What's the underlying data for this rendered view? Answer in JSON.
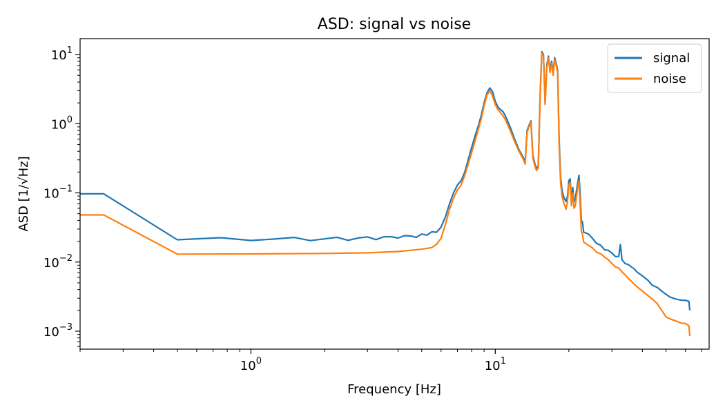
{
  "chart_data": {
    "type": "line",
    "title": "ASD: signal vs noise",
    "xlabel": "Frequency [Hz]",
    "ylabel": "ASD [1/√Hz]",
    "xscale": "log",
    "yscale": "log",
    "xlim": [
      0.2,
      75
    ],
    "ylim": [
      0.00055,
      17
    ],
    "x_tick_labels": [
      {
        "value": 1,
        "base": "10",
        "exp": "0"
      },
      {
        "value": 10,
        "base": "10",
        "exp": "1"
      }
    ],
    "y_tick_labels": [
      {
        "value": 0.001,
        "base": "10",
        "exp": "−3"
      },
      {
        "value": 0.01,
        "base": "10",
        "exp": "−2"
      },
      {
        "value": 0.1,
        "base": "10",
        "exp": "−1"
      },
      {
        "value": 1,
        "base": "10",
        "exp": "0"
      },
      {
        "value": 10,
        "base": "10",
        "exp": "1"
      }
    ],
    "legend": {
      "location": "top-right",
      "entries": [
        "signal",
        "noise"
      ]
    },
    "colors": {
      "signal": "#1f77b4",
      "noise": "#ff7f0e"
    },
    "series": [
      {
        "name": "signal",
        "x": [
          0.2,
          0.25,
          0.5,
          0.75,
          1.0,
          1.25,
          1.5,
          1.75,
          2.0,
          2.25,
          2.5,
          2.75,
          3.0,
          3.25,
          3.5,
          3.75,
          4.0,
          4.25,
          4.5,
          4.75,
          5.0,
          5.25,
          5.5,
          5.75,
          6.0,
          6.25,
          6.5,
          6.75,
          7.0,
          7.25,
          7.5,
          7.75,
          8.0,
          8.25,
          8.5,
          8.75,
          9.0,
          9.25,
          9.5,
          9.75,
          10.0,
          10.25,
          10.5,
          10.75,
          11.0,
          11.5,
          12.0,
          12.5,
          13.0,
          13.25,
          13.5,
          13.75,
          14.0,
          14.25,
          14.5,
          14.75,
          15.0,
          15.25,
          15.5,
          15.75,
          16.0,
          16.25,
          16.5,
          16.75,
          17.0,
          17.25,
          17.5,
          17.75,
          18.0,
          18.25,
          18.5,
          18.75,
          19.0,
          19.25,
          19.5,
          19.75,
          20.0,
          20.25,
          20.5,
          20.75,
          21.0,
          21.25,
          21.5,
          21.75,
          22.0,
          22.25,
          22.5,
          22.75,
          23.0,
          24.0,
          25.0,
          26.0,
          27.0,
          28.0,
          29.0,
          30.0,
          31.0,
          32.0,
          32.5,
          33.0,
          34.0,
          35.0,
          36.0,
          37.0,
          38.0,
          40.0,
          42.0,
          44.0,
          46.0,
          48.0,
          50.0,
          52.0,
          55.0,
          58.0,
          60.0,
          62.0,
          62.5
        ],
        "y": [
          0.097,
          0.097,
          0.021,
          0.0225,
          0.0205,
          0.0215,
          0.0227,
          0.0204,
          0.0216,
          0.0228,
          0.0206,
          0.0223,
          0.0231,
          0.0211,
          0.0232,
          0.0232,
          0.0222,
          0.0241,
          0.0238,
          0.0228,
          0.0254,
          0.0245,
          0.0274,
          0.0269,
          0.032,
          0.045,
          0.07,
          0.1,
          0.13,
          0.15,
          0.2,
          0.3,
          0.45,
          0.65,
          0.9,
          1.3,
          2.0,
          2.8,
          3.3,
          2.9,
          2.1,
          1.75,
          1.6,
          1.5,
          1.3,
          0.9,
          0.6,
          0.42,
          0.33,
          0.28,
          0.8,
          0.95,
          1.1,
          0.35,
          0.27,
          0.22,
          0.25,
          2.5,
          11.0,
          10.0,
          2.0,
          7.0,
          9.5,
          6.0,
          8.0,
          5.5,
          9.0,
          7.5,
          6.0,
          0.6,
          0.17,
          0.11,
          0.09,
          0.08,
          0.075,
          0.09,
          0.15,
          0.16,
          0.08,
          0.12,
          0.075,
          0.08,
          0.11,
          0.14,
          0.18,
          0.1,
          0.04,
          0.038,
          0.027,
          0.0255,
          0.022,
          0.0185,
          0.0175,
          0.015,
          0.0148,
          0.0135,
          0.012,
          0.012,
          0.018,
          0.0108,
          0.0095,
          0.0092,
          0.0085,
          0.008,
          0.0072,
          0.0063,
          0.0055,
          0.0046,
          0.0043,
          0.0038,
          0.0034,
          0.0031,
          0.0029,
          0.0028,
          0.0028,
          0.0027,
          0.002
        ]
      },
      {
        "name": "noise",
        "x": [
          0.2,
          0.25,
          0.5,
          1.0,
          2.0,
          3.0,
          4.0,
          5.0,
          5.5,
          5.75,
          6.0,
          6.25,
          6.5,
          6.75,
          7.0,
          7.25,
          7.5,
          7.75,
          8.0,
          8.25,
          8.5,
          8.75,
          9.0,
          9.25,
          9.5,
          9.75,
          10.0,
          10.25,
          10.5,
          10.75,
          11.0,
          11.5,
          12.0,
          12.5,
          13.0,
          13.25,
          13.5,
          13.75,
          14.0,
          14.25,
          14.5,
          14.75,
          15.0,
          15.25,
          15.5,
          15.75,
          16.0,
          16.25,
          16.5,
          16.75,
          17.0,
          17.25,
          17.5,
          17.75,
          18.0,
          18.25,
          18.5,
          18.75,
          19.0,
          19.25,
          19.5,
          19.75,
          20.0,
          20.25,
          20.5,
          20.75,
          21.0,
          21.25,
          21.5,
          21.75,
          22.0,
          22.25,
          22.5,
          22.75,
          23.0,
          24.0,
          25.0,
          26.0,
          27.0,
          28.0,
          29.0,
          30.0,
          31.0,
          32.0,
          33.0,
          34.0,
          35.0,
          36.0,
          37.0,
          38.0,
          40.0,
          42.0,
          44.0,
          46.0,
          48.0,
          50.0,
          52.0,
          55.0,
          58.0,
          60.0,
          62.0,
          62.5
        ],
        "y": [
          0.048,
          0.048,
          0.013,
          0.0131,
          0.0133,
          0.0136,
          0.0142,
          0.0153,
          0.0162,
          0.018,
          0.022,
          0.035,
          0.058,
          0.085,
          0.11,
          0.13,
          0.18,
          0.26,
          0.38,
          0.55,
          0.8,
          1.15,
          1.8,
          2.6,
          3.0,
          2.5,
          1.9,
          1.6,
          1.45,
          1.3,
          1.15,
          0.8,
          0.55,
          0.4,
          0.31,
          0.26,
          0.75,
          0.9,
          1.05,
          0.32,
          0.25,
          0.21,
          0.23,
          2.3,
          10.5,
          9.5,
          1.9,
          6.5,
          9.0,
          5.5,
          7.5,
          5.0,
          8.5,
          7.0,
          5.5,
          0.5,
          0.14,
          0.09,
          0.075,
          0.065,
          0.058,
          0.075,
          0.13,
          0.14,
          0.065,
          0.1,
          0.06,
          0.065,
          0.09,
          0.12,
          0.15,
          0.07,
          0.028,
          0.025,
          0.0195,
          0.0175,
          0.016,
          0.0138,
          0.0132,
          0.0118,
          0.0108,
          0.0095,
          0.0085,
          0.0082,
          0.0072,
          0.0065,
          0.0058,
          0.0053,
          0.0048,
          0.0044,
          0.0038,
          0.0033,
          0.0029,
          0.0025,
          0.002,
          0.0016,
          0.0015,
          0.0014,
          0.0013,
          0.0013,
          0.0012,
          0.00085
        ]
      }
    ]
  }
}
